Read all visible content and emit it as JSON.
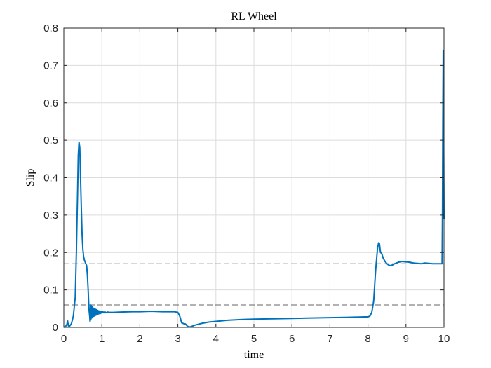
{
  "chart_data": {
    "type": "line",
    "title": "RL Wheel",
    "xlabel": "time",
    "ylabel": "Slip",
    "xlim": [
      0,
      10
    ],
    "ylim": [
      0,
      0.8
    ],
    "grid": true,
    "legend": "none",
    "xticks": [
      "0",
      "1",
      "2",
      "3",
      "4",
      "5",
      "6",
      "7",
      "8",
      "9",
      "10"
    ],
    "yticks": [
      "0",
      "0.1",
      "0.2",
      "0.3",
      "0.4",
      "0.5",
      "0.6",
      "0.7",
      "0.8"
    ],
    "colors": {
      "series": "#0072BD",
      "reference": "#666666",
      "grid": "#dcdcdc",
      "axes": "#262626"
    },
    "reference_lines": [
      {
        "y": 0.17,
        "style": "dashed"
      },
      {
        "y": 0.06,
        "style": "dashed"
      }
    ],
    "series": [
      {
        "x": [
          0,
          0.05,
          0.08,
          0.1,
          0.12,
          0.15,
          0.2,
          0.25,
          0.3,
          0.33,
          0.36,
          0.38,
          0.4,
          0.42,
          0.44,
          0.46,
          0.48,
          0.5,
          0.52,
          0.54,
          0.56,
          0.58,
          0.6,
          0.62,
          0.64,
          0.66,
          0.68,
          0.69,
          0.7,
          0.71,
          0.72,
          0.73,
          0.74,
          0.75,
          0.76,
          0.77,
          0.78,
          0.79,
          0.8,
          0.81,
          0.82,
          0.83,
          0.84,
          0.85,
          0.86,
          0.87,
          0.88,
          0.89,
          0.9,
          0.92,
          0.94,
          0.96,
          0.98,
          1.0,
          1.02,
          1.05,
          1.08,
          1.1,
          1.15,
          1.2,
          1.3,
          1.5,
          1.8,
          2.0,
          2.3,
          2.6,
          2.9,
          3.0,
          3.05,
          3.1,
          3.15,
          3.2,
          3.25,
          3.3,
          3.35,
          3.45,
          3.6,
          3.8,
          4.0,
          4.3,
          4.7,
          5.0,
          5.5,
          6.0,
          6.5,
          7.0,
          7.5,
          7.9,
          8.0,
          8.05,
          8.1,
          8.15,
          8.2,
          8.25,
          8.28,
          8.3,
          8.33,
          8.36,
          8.4,
          8.45,
          8.5,
          8.55,
          8.6,
          8.65,
          8.7,
          8.8,
          8.9,
          9.0,
          9.1,
          9.2,
          9.3,
          9.4,
          9.5,
          9.6,
          9.7,
          9.8,
          9.9,
          9.95,
          9.96,
          9.97,
          9.98,
          9.99,
          10.0
        ],
        "y": [
          0,
          0.003,
          0.008,
          0.017,
          0.004,
          0.003,
          0.01,
          0.03,
          0.08,
          0.2,
          0.35,
          0.46,
          0.495,
          0.48,
          0.4,
          0.32,
          0.25,
          0.21,
          0.19,
          0.18,
          0.175,
          0.17,
          0.165,
          0.14,
          0.1,
          0.05,
          0.03,
          0.015,
          0.06,
          0.02,
          0.058,
          0.025,
          0.055,
          0.027,
          0.053,
          0.029,
          0.051,
          0.03,
          0.05,
          0.031,
          0.049,
          0.032,
          0.048,
          0.033,
          0.047,
          0.034,
          0.046,
          0.035,
          0.045,
          0.036,
          0.044,
          0.037,
          0.043,
          0.038,
          0.043,
          0.039,
          0.042,
          0.039,
          0.041,
          0.04,
          0.04,
          0.041,
          0.042,
          0.042,
          0.043,
          0.042,
          0.042,
          0.04,
          0.03,
          0.012,
          0.01,
          0.009,
          0.003,
          0.001,
          0.002,
          0.006,
          0.01,
          0.014,
          0.016,
          0.019,
          0.021,
          0.022,
          0.023,
          0.024,
          0.025,
          0.026,
          0.027,
          0.028,
          0.028,
          0.03,
          0.04,
          0.07,
          0.15,
          0.21,
          0.226,
          0.225,
          0.2,
          0.198,
          0.185,
          0.176,
          0.17,
          0.166,
          0.165,
          0.167,
          0.17,
          0.174,
          0.176,
          0.175,
          0.174,
          0.172,
          0.171,
          0.17,
          0.172,
          0.171,
          0.17,
          0.17,
          0.17,
          0.17,
          0.3,
          0.55,
          0.74,
          0.5,
          0.29
        ]
      }
    ]
  }
}
